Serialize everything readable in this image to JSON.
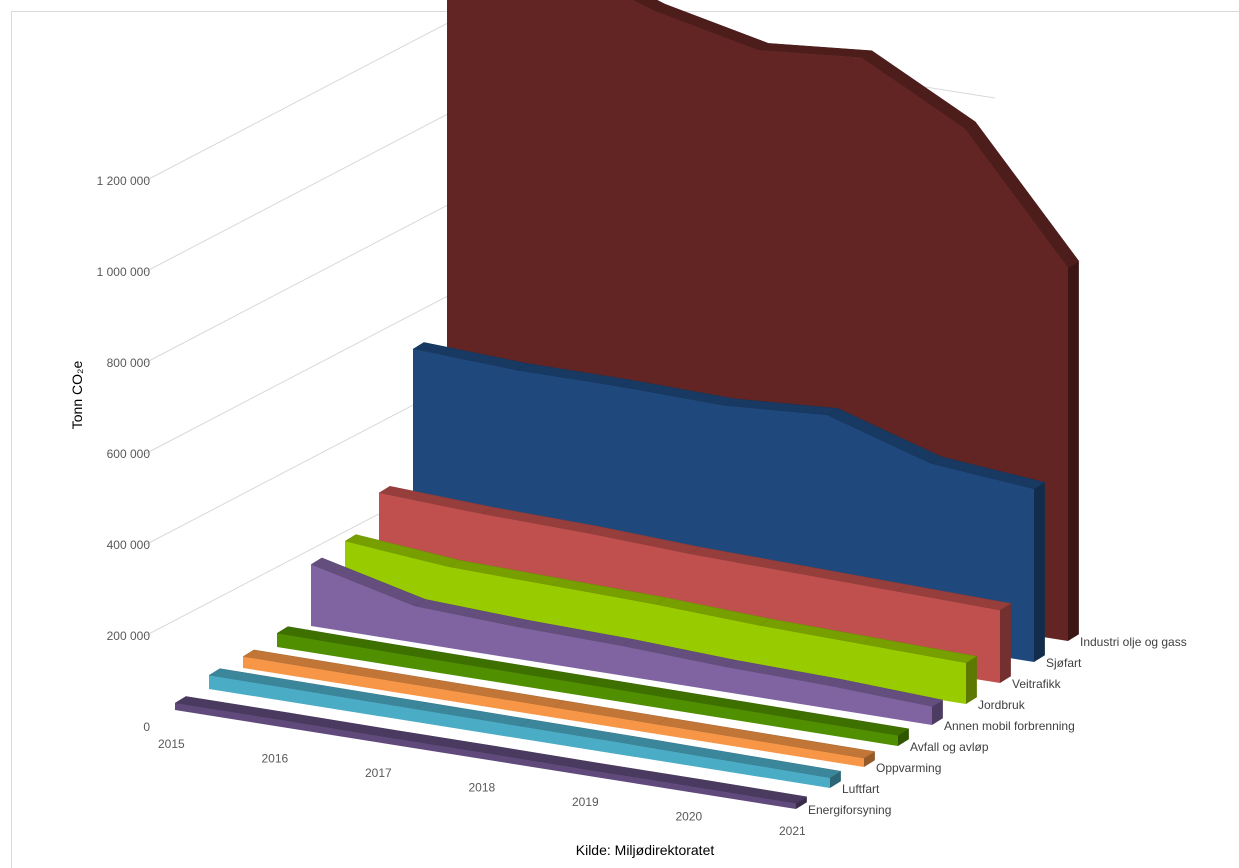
{
  "caption": "Kilde: Miljødirektoratet",
  "chart_data": {
    "type": "area",
    "ylabel": "Tonn CO₂e",
    "xlabel": "",
    "title": "",
    "x": [
      "2015",
      "2016",
      "2017",
      "2018",
      "2019",
      "2020",
      "2021"
    ],
    "ylim": [
      0,
      1300000
    ],
    "yticks": [
      0,
      200000,
      400000,
      600000,
      800000,
      1000000,
      1200000
    ],
    "ytick_labels": [
      "0",
      "200 000",
      "400 000",
      "600 000",
      "800 000",
      "1 000 000",
      "1 200 000"
    ],
    "series": [
      {
        "name": "Industri  olje og gass",
        "color": "#632523",
        "values": [
          1290000,
          1320000,
          1240000,
          1190000,
          1210000,
          1090000,
          820000
        ]
      },
      {
        "name": "Sjøfart",
        "color": "#1F497D",
        "values": [
          470000,
          460000,
          460000,
          455000,
          470000,
          400000,
          380000
        ]
      },
      {
        "name": "Veitrafikk",
        "color": "#C0504D",
        "values": [
          200000,
          190000,
          185000,
          175000,
          170000,
          165000,
          160000
        ]
      },
      {
        "name": "Jordbruk",
        "color": "#99CC00",
        "values": [
          140000,
          120000,
          115000,
          110000,
          100000,
          95000,
          90000
        ]
      },
      {
        "name": "Annen mobil forbrenning",
        "color": "#8064A2",
        "values": [
          135000,
          80000,
          70000,
          65000,
          55000,
          50000,
          40000
        ]
      },
      {
        "name": "Avfall og avløp",
        "color": "#4F8F00",
        "values": [
          30000,
          28000,
          27000,
          26000,
          25000,
          24000,
          23000
        ]
      },
      {
        "name": "Oppvarming",
        "color": "#F79646",
        "values": [
          25000,
          24000,
          23000,
          22000,
          21000,
          20000,
          19000
        ]
      },
      {
        "name": "Luftfart",
        "color": "#4BACC6",
        "values": [
          30000,
          29000,
          28000,
          27000,
          26000,
          24000,
          22000
        ]
      },
      {
        "name": "Energiforsyning",
        "color": "#604A7B",
        "values": [
          15000,
          15000,
          14000,
          14000,
          13000,
          13000,
          12000
        ]
      }
    ]
  }
}
